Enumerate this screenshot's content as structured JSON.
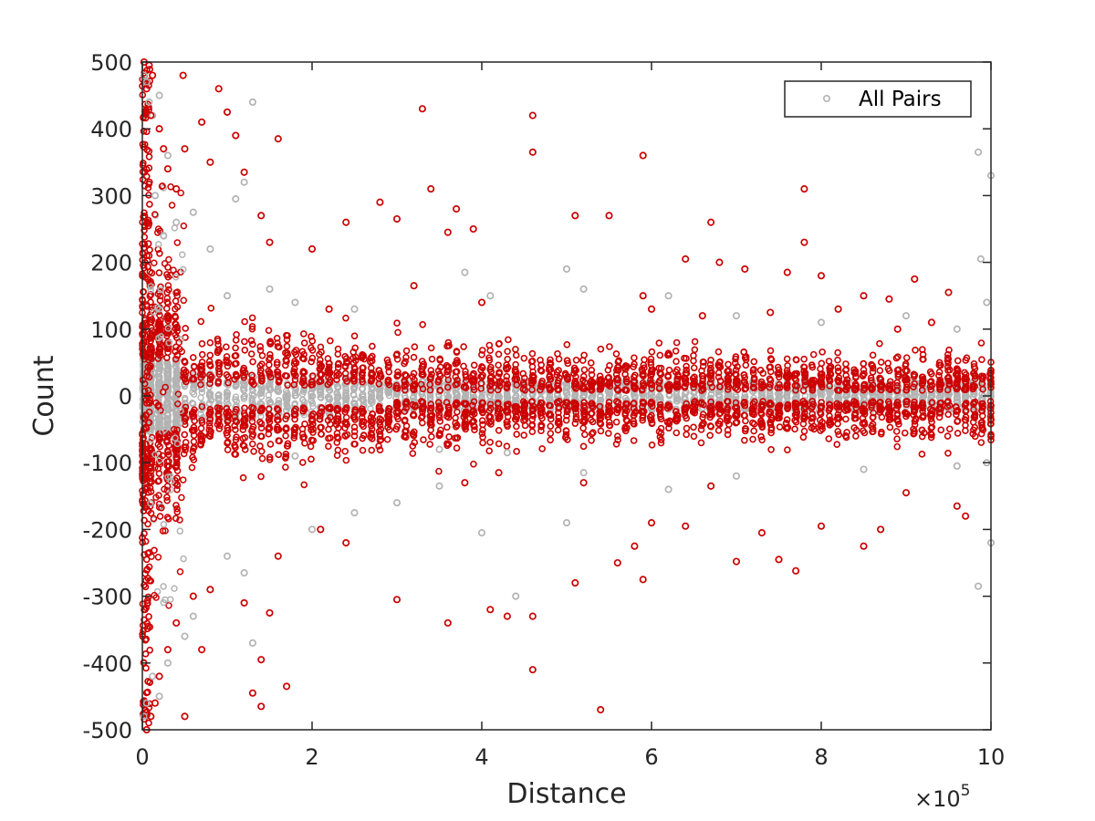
{
  "chart_data": {
    "type": "scatter",
    "xlabel": "Distance",
    "ylabel": "Count",
    "xlim": [
      0,
      1000000
    ],
    "ylim": [
      -500,
      500
    ],
    "x_ticks": [
      0,
      200000,
      400000,
      600000,
      800000,
      1000000
    ],
    "x_tick_labels": [
      "0",
      "2",
      "4",
      "6",
      "8",
      "10"
    ],
    "y_ticks": [
      -500,
      -400,
      -300,
      -200,
      -100,
      0,
      100,
      200,
      300,
      400,
      500
    ],
    "y_tick_labels": [
      "-500",
      "-400",
      "-300",
      "-200",
      "-100",
      "0",
      "100",
      "200",
      "300",
      "400",
      "500"
    ],
    "x_exponent": {
      "base": "×10",
      "power": "5"
    },
    "grid": false,
    "legend": {
      "placement": "top-right",
      "entries": [
        "All Pairs"
      ]
    },
    "colors": {
      "all_pairs": "#b3b3b3",
      "highlighted": "#cc0000"
    },
    "series": [
      {
        "name": "All Pairs",
        "color": "#b3b3b3",
        "marker": "circle",
        "points": [
          [
            2000,
            480
          ],
          [
            5000,
            470
          ],
          [
            8000,
            440
          ],
          [
            12000,
            420
          ],
          [
            20000,
            450
          ],
          [
            30000,
            360
          ],
          [
            15000,
            300
          ],
          [
            25000,
            240
          ],
          [
            40000,
            260
          ],
          [
            60000,
            275
          ],
          [
            80000,
            220
          ],
          [
            100000,
            150
          ],
          [
            110000,
            295
          ],
          [
            120000,
            320
          ],
          [
            130000,
            440
          ],
          [
            150000,
            160
          ],
          [
            180000,
            140
          ],
          [
            250000,
            130
          ],
          [
            380000,
            185
          ],
          [
            410000,
            150
          ],
          [
            500000,
            190
          ],
          [
            520000,
            160
          ],
          [
            620000,
            150
          ],
          [
            700000,
            120
          ],
          [
            800000,
            110
          ],
          [
            900000,
            120
          ],
          [
            960000,
            100
          ],
          [
            985000,
            365
          ],
          [
            988000,
            205
          ],
          [
            995000,
            140
          ],
          [
            1000000,
            330
          ],
          [
            2000,
            -480
          ],
          [
            5000,
            -460
          ],
          [
            12000,
            -420
          ],
          [
            20000,
            -450
          ],
          [
            30000,
            -400
          ],
          [
            50000,
            -360
          ],
          [
            60000,
            -330
          ],
          [
            80000,
            -290
          ],
          [
            100000,
            -240
          ],
          [
            120000,
            -265
          ],
          [
            130000,
            -370
          ],
          [
            200000,
            -200
          ],
          [
            250000,
            -175
          ],
          [
            300000,
            -160
          ],
          [
            350000,
            -135
          ],
          [
            400000,
            -205
          ],
          [
            440000,
            -300
          ],
          [
            500000,
            -190
          ],
          [
            520000,
            -115
          ],
          [
            620000,
            -140
          ],
          [
            700000,
            -120
          ],
          [
            850000,
            -110
          ],
          [
            960000,
            -105
          ],
          [
            985000,
            -285
          ],
          [
            995000,
            -100
          ],
          [
            1000000,
            -220
          ],
          [
            180000,
            -90
          ],
          [
            350000,
            -80
          ],
          [
            430000,
            -85
          ]
        ]
      },
      {
        "name": "",
        "color": "#cc0000",
        "marker": "circle",
        "points": [
          [
            2000,
            500
          ],
          [
            8000,
            495
          ],
          [
            12000,
            480
          ],
          [
            5000,
            460
          ],
          [
            10000,
            420
          ],
          [
            20000,
            400
          ],
          [
            25000,
            370
          ],
          [
            30000,
            340
          ],
          [
            40000,
            310
          ],
          [
            48000,
            480
          ],
          [
            50000,
            370
          ],
          [
            70000,
            410
          ],
          [
            80000,
            350
          ],
          [
            90000,
            460
          ],
          [
            100000,
            425
          ],
          [
            110000,
            390
          ],
          [
            120000,
            335
          ],
          [
            140000,
            270
          ],
          [
            160000,
            385
          ],
          [
            150000,
            230
          ],
          [
            200000,
            220
          ],
          [
            240000,
            260
          ],
          [
            280000,
            290
          ],
          [
            300000,
            265
          ],
          [
            330000,
            430
          ],
          [
            340000,
            310
          ],
          [
            360000,
            245
          ],
          [
            370000,
            280
          ],
          [
            390000,
            250
          ],
          [
            460000,
            420
          ],
          [
            460000,
            365
          ],
          [
            510000,
            270
          ],
          [
            550000,
            270
          ],
          [
            590000,
            360
          ],
          [
            640000,
            205
          ],
          [
            670000,
            260
          ],
          [
            680000,
            200
          ],
          [
            710000,
            190
          ],
          [
            760000,
            185
          ],
          [
            780000,
            310
          ],
          [
            780000,
            230
          ],
          [
            800000,
            180
          ],
          [
            850000,
            150
          ],
          [
            880000,
            145
          ],
          [
            910000,
            175
          ],
          [
            950000,
            155
          ],
          [
            590000,
            150
          ],
          [
            400000,
            140
          ],
          [
            320000,
            165
          ],
          [
            220000,
            130
          ],
          [
            5000,
            -500
          ],
          [
            10000,
            -480
          ],
          [
            15000,
            -460
          ],
          [
            20000,
            -420
          ],
          [
            30000,
            -380
          ],
          [
            40000,
            -340
          ],
          [
            50000,
            -480
          ],
          [
            70000,
            -380
          ],
          [
            60000,
            -300
          ],
          [
            80000,
            -290
          ],
          [
            120000,
            -310
          ],
          [
            130000,
            -445
          ],
          [
            140000,
            -465
          ],
          [
            140000,
            -395
          ],
          [
            150000,
            -325
          ],
          [
            170000,
            -435
          ],
          [
            160000,
            -240
          ],
          [
            240000,
            -220
          ],
          [
            300000,
            -305
          ],
          [
            360000,
            -340
          ],
          [
            410000,
            -320
          ],
          [
            430000,
            -330
          ],
          [
            460000,
            -410
          ],
          [
            460000,
            -330
          ],
          [
            540000,
            -470
          ],
          [
            510000,
            -280
          ],
          [
            560000,
            -250
          ],
          [
            580000,
            -225
          ],
          [
            590000,
            -275
          ],
          [
            600000,
            -190
          ],
          [
            640000,
            -195
          ],
          [
            670000,
            -135
          ],
          [
            700000,
            -248
          ],
          [
            730000,
            -205
          ],
          [
            750000,
            -245
          ],
          [
            770000,
            -262
          ],
          [
            800000,
            -195
          ],
          [
            850000,
            -225
          ],
          [
            870000,
            -200
          ],
          [
            900000,
            -145
          ],
          [
            960000,
            -165
          ],
          [
            970000,
            -180
          ],
          [
            210000,
            -200
          ],
          [
            380000,
            -130
          ],
          [
            420000,
            -115
          ],
          [
            520000,
            -130
          ],
          [
            600000,
            130
          ],
          [
            660000,
            120
          ],
          [
            740000,
            125
          ],
          [
            820000,
            130
          ],
          [
            890000,
            100
          ],
          [
            930000,
            110
          ]
        ]
      }
    ]
  }
}
